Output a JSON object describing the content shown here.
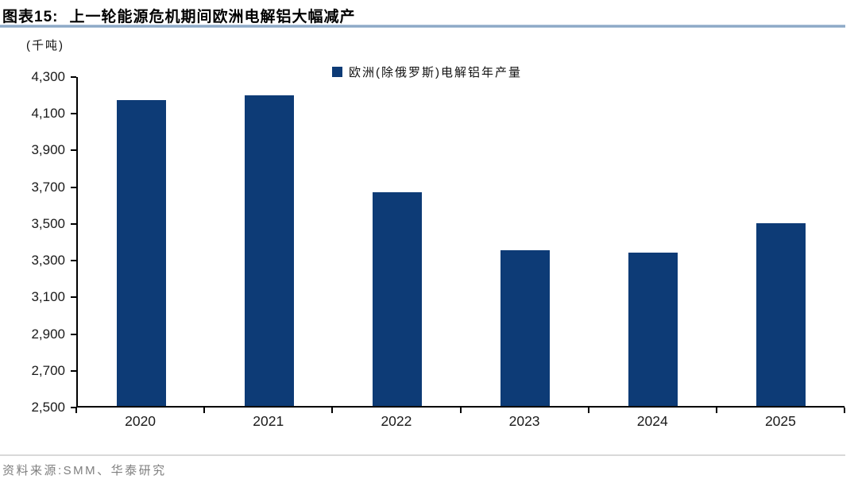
{
  "header": {
    "tag": "图表15:",
    "title": "上一轮能源危机期间欧洲电解铝大幅减产"
  },
  "legend": {
    "label": "欧洲(除俄罗斯)电解铝年产量"
  },
  "footer": {
    "source": "资料来源:SMM、华泰研究"
  },
  "colors": {
    "bar": "#0d3b76",
    "title_rule": "#7e9cbd",
    "footer_rule": "#d9d9d9",
    "axis": "#000000",
    "footer_text": "#7f7f7f"
  },
  "chart_data": {
    "type": "bar",
    "title": "上一轮能源危机期间欧洲电解铝大幅减产",
    "series_name": "欧洲(除俄罗斯)电解铝年产量",
    "categories": [
      "2020",
      "2021",
      "2022",
      "2023",
      "2024",
      "2025"
    ],
    "values": [
      4175,
      4200,
      3670,
      3350,
      3340,
      3500
    ],
    "xlabel": "",
    "ylabel": "(千吨)",
    "ylim": [
      2500,
      4300
    ],
    "ytick_step": 200,
    "yticks": [
      "4,300",
      "4,100",
      "3,900",
      "3,700",
      "3,500",
      "3,300",
      "3,100",
      "2,900",
      "2,700",
      "2,500"
    ],
    "grid": false,
    "legend_position": "top-center",
    "bar_color": "#0d3b76"
  }
}
